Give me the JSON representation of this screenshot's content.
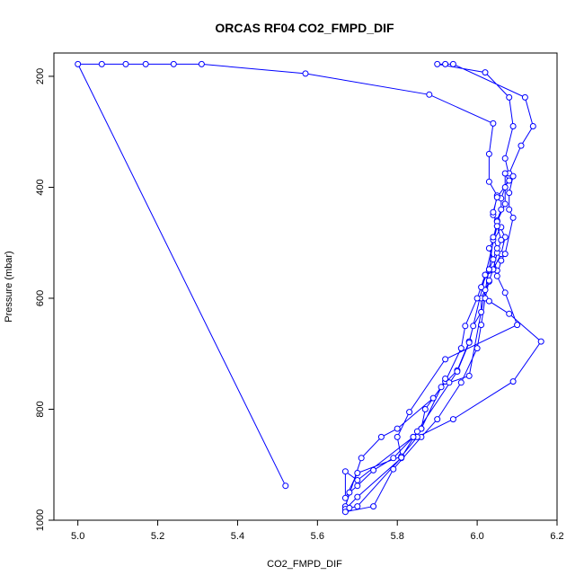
{
  "chart_data": {
    "type": "scatter",
    "title": "ORCAS RF04 CO2_FMPD_DIF",
    "xlabel": "CO2_FMPD_DIF",
    "ylabel": "Pressure (mbar)",
    "xlim": [
      4.94,
      6.2
    ],
    "ylim": [
      1000,
      158
    ],
    "y_reversed": true,
    "x_ticks": [
      5.0,
      5.2,
      5.4,
      5.6,
      5.8,
      6.0,
      6.2
    ],
    "x_tick_labels": [
      "5.0",
      "5.2",
      "5.4",
      "5.6",
      "5.8",
      "6.0",
      "6.2"
    ],
    "y_ticks": [
      200,
      400,
      600,
      800,
      1000
    ],
    "y_tick_labels": [
      "200",
      "400",
      "600",
      "800",
      "1000"
    ],
    "grid": false,
    "colors": {
      "series": "#0000ff",
      "axis": "#000000",
      "background": "#ffffff"
    },
    "marker": "open-circle",
    "series": [
      {
        "points": [
          [
            5.52,
            938
          ],
          [
            5.0,
            178
          ],
          [
            5.06,
            178
          ],
          [
            5.12,
            178
          ],
          [
            5.17,
            178
          ],
          [
            5.24,
            178
          ],
          [
            5.31,
            178
          ],
          [
            5.57,
            195
          ],
          [
            5.88,
            233
          ],
          [
            6.04,
            285
          ],
          [
            6.03,
            340
          ],
          [
            6.03,
            390
          ],
          [
            6.05,
            415
          ],
          [
            6.04,
            450
          ],
          [
            6.05,
            462
          ],
          [
            6.06,
            472
          ],
          [
            6.03,
            510
          ],
          [
            6.04,
            530
          ],
          [
            6.05,
            550
          ],
          [
            6.02,
            558
          ],
          [
            6.03,
            570
          ],
          [
            6.02,
            585
          ],
          [
            6.01,
            600
          ],
          [
            6.01,
            625
          ],
          [
            5.99,
            650
          ],
          [
            5.98,
            678
          ],
          [
            5.95,
            730
          ],
          [
            5.91,
            760
          ],
          [
            5.87,
            800
          ],
          [
            5.86,
            835
          ],
          [
            5.84,
            850
          ],
          [
            5.79,
            888
          ],
          [
            5.74,
            910
          ],
          [
            5.7,
            938
          ],
          [
            5.68,
            950
          ],
          [
            5.67,
            975
          ],
          [
            5.71,
            888
          ],
          [
            5.76,
            850
          ],
          [
            5.8,
            835
          ],
          [
            5.89,
            780
          ],
          [
            5.92,
            750
          ],
          [
            5.96,
            690
          ],
          [
            5.97,
            650
          ],
          [
            6.0,
            600
          ],
          [
            6.02,
            558
          ],
          [
            6.04,
            548
          ],
          [
            6.06,
            520
          ],
          [
            6.07,
            490
          ],
          [
            6.05,
            460
          ],
          [
            6.06,
            440
          ],
          [
            6.06,
            420
          ],
          [
            6.07,
            400
          ],
          [
            6.08,
            380
          ],
          [
            6.07,
            348
          ],
          [
            6.09,
            290
          ],
          [
            6.08,
            238
          ],
          [
            6.02,
            193
          ],
          [
            5.9,
            178
          ],
          [
            5.92,
            178
          ],
          [
            5.94,
            178
          ],
          [
            6.12,
            238
          ],
          [
            6.14,
            290
          ],
          [
            6.11,
            325
          ],
          [
            6.08,
            375
          ],
          [
            6.09,
            380
          ],
          [
            6.08,
            410
          ],
          [
            6.08,
            440
          ],
          [
            6.09,
            455
          ],
          [
            6.07,
            520
          ],
          [
            6.06,
            532
          ],
          [
            6.05,
            560
          ],
          [
            6.07,
            590
          ],
          [
            6.1,
            648
          ],
          [
            5.92,
            710
          ],
          [
            5.83,
            805
          ],
          [
            5.8,
            850
          ],
          [
            5.81,
            888
          ],
          [
            5.7,
            958
          ],
          [
            5.67,
            980
          ],
          [
            5.67,
            985
          ],
          [
            5.74,
            975
          ],
          [
            5.79,
            908
          ],
          [
            5.86,
            850
          ],
          [
            5.9,
            818
          ],
          [
            5.96,
            752
          ],
          [
            6.0,
            690
          ],
          [
            6.01,
            648
          ],
          [
            6.02,
            600
          ],
          [
            6.03,
            568
          ],
          [
            6.04,
            548
          ],
          [
            6.05,
            518
          ],
          [
            6.06,
            495
          ],
          [
            6.05,
            470
          ],
          [
            6.04,
            445
          ],
          [
            6.05,
            418
          ],
          [
            6.08,
            388
          ],
          [
            6.07,
            375
          ],
          [
            6.07,
            430
          ],
          [
            6.05,
            462
          ],
          [
            6.04,
            495
          ],
          [
            6.03,
            548
          ],
          [
            6.01,
            580
          ],
          [
            6.03,
            605
          ],
          [
            6.08,
            628
          ],
          [
            6.16,
            678
          ],
          [
            6.09,
            750
          ],
          [
            5.94,
            818
          ],
          [
            5.85,
            850
          ],
          [
            5.81,
            885
          ],
          [
            5.7,
            915
          ],
          [
            5.67,
            960
          ],
          [
            5.67,
            912
          ],
          [
            5.7,
            928
          ],
          [
            5.84,
            850
          ],
          [
            5.86,
            835
          ],
          [
            5.92,
            745
          ],
          [
            5.93,
            752
          ],
          [
            5.98,
            740
          ],
          [
            6.03,
            548
          ],
          [
            6.04,
            530
          ],
          [
            6.05,
            510
          ],
          [
            6.04,
            490
          ],
          [
            6.05,
            470
          ],
          [
            5.98,
            680
          ],
          [
            5.95,
            732
          ],
          [
            5.85,
            840
          ],
          [
            5.81,
            887
          ],
          [
            5.7,
            975
          ],
          [
            5.68,
            978
          ]
        ]
      }
    ]
  }
}
